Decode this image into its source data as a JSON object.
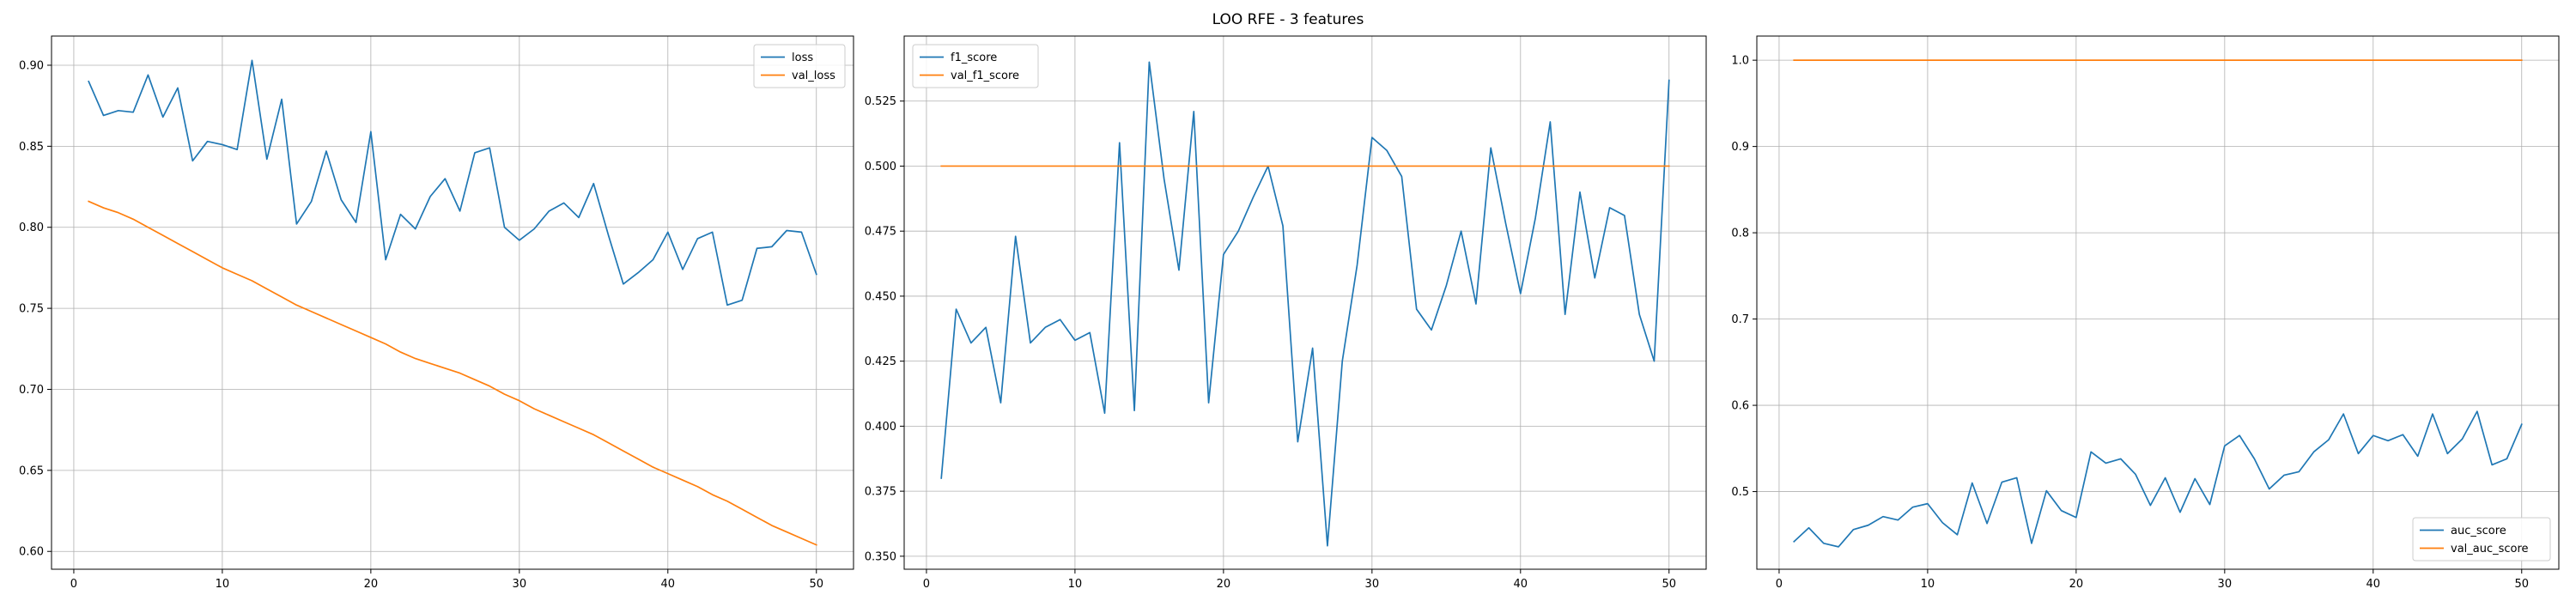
{
  "figure": {
    "title": "LOO RFE - 3 features"
  },
  "chart_data": [
    {
      "type": "line",
      "xlim": [
        -1.5,
        52.5
      ],
      "ylim": [
        0.589,
        0.918
      ],
      "xticks": [
        0,
        10,
        20,
        30,
        40,
        50
      ],
      "yticks": [
        0.6,
        0.65,
        0.7,
        0.75,
        0.8,
        0.85,
        0.9
      ],
      "ytick_decimals": 2,
      "grid": true,
      "legend": "upper right",
      "series": [
        {
          "name": "loss",
          "color": "#1f77b4",
          "x": [
            1,
            2,
            3,
            4,
            5,
            6,
            7,
            8,
            9,
            10,
            11,
            12,
            13,
            14,
            15,
            16,
            17,
            18,
            19,
            20,
            21,
            22,
            23,
            24,
            25,
            26,
            27,
            28,
            29,
            30,
            31,
            32,
            33,
            34,
            35,
            36,
            37,
            38,
            39,
            40,
            41,
            42,
            43,
            44,
            45,
            46,
            47,
            48,
            49,
            50
          ],
          "values": [
            0.89,
            0.869,
            0.872,
            0.871,
            0.894,
            0.868,
            0.886,
            0.841,
            0.853,
            0.851,
            0.848,
            0.903,
            0.842,
            0.879,
            0.802,
            0.816,
            0.847,
            0.817,
            0.803,
            0.859,
            0.78,
            0.808,
            0.799,
            0.819,
            0.83,
            0.81,
            0.846,
            0.849,
            0.8,
            0.792,
            0.799,
            0.81,
            0.815,
            0.806,
            0.827,
            0.795,
            0.765,
            0.772,
            0.78,
            0.797,
            0.774,
            0.793,
            0.797,
            0.752,
            0.755,
            0.787,
            0.788,
            0.798,
            0.797,
            0.771
          ]
        },
        {
          "name": "val_loss",
          "color": "#ff7f0e",
          "x": [
            1,
            2,
            3,
            4,
            5,
            6,
            7,
            8,
            9,
            10,
            11,
            12,
            13,
            14,
            15,
            16,
            17,
            18,
            19,
            20,
            21,
            22,
            23,
            24,
            25,
            26,
            27,
            28,
            29,
            30,
            31,
            32,
            33,
            34,
            35,
            36,
            37,
            38,
            39,
            40,
            41,
            42,
            43,
            44,
            45,
            46,
            47,
            48,
            49,
            50
          ],
          "values": [
            0.816,
            0.812,
            0.809,
            0.805,
            0.8,
            0.795,
            0.79,
            0.785,
            0.78,
            0.775,
            0.771,
            0.767,
            0.762,
            0.757,
            0.752,
            0.748,
            0.744,
            0.74,
            0.736,
            0.732,
            0.728,
            0.723,
            0.719,
            0.716,
            0.713,
            0.71,
            0.706,
            0.702,
            0.697,
            0.693,
            0.688,
            0.684,
            0.68,
            0.676,
            0.672,
            0.667,
            0.662,
            0.657,
            0.652,
            0.648,
            0.644,
            0.64,
            0.635,
            0.631,
            0.626,
            0.621,
            0.616,
            0.612,
            0.608,
            0.604
          ]
        }
      ]
    },
    {
      "type": "line",
      "xlim": [
        -1.5,
        52.5
      ],
      "ylim": [
        0.345,
        0.55
      ],
      "xticks": [
        0,
        10,
        20,
        30,
        40,
        50
      ],
      "yticks": [
        0.35,
        0.375,
        0.4,
        0.425,
        0.45,
        0.475,
        0.5,
        0.525
      ],
      "ytick_decimals": 3,
      "grid": true,
      "legend": "upper left",
      "series": [
        {
          "name": "f1_score",
          "color": "#1f77b4",
          "x": [
            1,
            2,
            3,
            4,
            5,
            6,
            7,
            8,
            9,
            10,
            11,
            12,
            13,
            14,
            15,
            16,
            17,
            18,
            19,
            20,
            21,
            22,
            23,
            24,
            25,
            26,
            27,
            28,
            29,
            30,
            31,
            32,
            33,
            34,
            35,
            36,
            37,
            38,
            39,
            40,
            41,
            42,
            43,
            44,
            45,
            46,
            47,
            48,
            49,
            50
          ],
          "values": [
            0.38,
            0.445,
            0.432,
            0.438,
            0.409,
            0.473,
            0.432,
            0.438,
            0.441,
            0.433,
            0.436,
            0.405,
            0.509,
            0.406,
            0.54,
            0.495,
            0.46,
            0.521,
            0.409,
            0.466,
            0.475,
            0.488,
            0.5,
            0.477,
            0.394,
            0.43,
            0.354,
            0.425,
            0.462,
            0.511,
            0.506,
            0.496,
            0.445,
            0.437,
            0.454,
            0.475,
            0.447,
            0.507,
            0.478,
            0.451,
            0.48,
            0.517,
            0.443,
            0.49,
            0.457,
            0.484,
            0.481,
            0.443,
            0.425,
            0.533
          ]
        },
        {
          "name": "val_f1_score",
          "color": "#ff7f0e",
          "x": [
            1,
            50
          ],
          "values": [
            0.5,
            0.5
          ]
        }
      ]
    },
    {
      "type": "line",
      "xlim": [
        -1.5,
        52.5
      ],
      "ylim": [
        0.41,
        1.028
      ],
      "xticks": [
        0,
        10,
        20,
        30,
        40,
        50
      ],
      "yticks": [
        0.5,
        0.6,
        0.7,
        0.8,
        0.9,
        1.0
      ],
      "ytick_decimals": 1,
      "grid": true,
      "legend": "lower right",
      "series": [
        {
          "name": "auc_score",
          "color": "#1f77b4",
          "x": [
            1,
            2,
            3,
            4,
            5,
            6,
            7,
            8,
            9,
            10,
            11,
            12,
            13,
            14,
            15,
            16,
            17,
            18,
            19,
            20,
            21,
            22,
            23,
            24,
            25,
            26,
            27,
            28,
            29,
            30,
            31,
            32,
            33,
            34,
            35,
            36,
            37,
            38,
            39,
            40,
            41,
            42,
            43,
            44,
            45,
            46,
            47,
            48,
            49,
            50
          ],
          "values": [
            0.442,
            0.458,
            0.44,
            0.436,
            0.456,
            0.461,
            0.471,
            0.467,
            0.482,
            0.486,
            0.464,
            0.45,
            0.51,
            0.463,
            0.511,
            0.516,
            0.44,
            0.501,
            0.478,
            0.47,
            0.546,
            0.533,
            0.538,
            0.52,
            0.484,
            0.516,
            0.476,
            0.515,
            0.485,
            0.553,
            0.565,
            0.538,
            0.503,
            0.519,
            0.523,
            0.546,
            0.56,
            0.59,
            0.544,
            0.565,
            0.559,
            0.566,
            0.541,
            0.59,
            0.544,
            0.561,
            0.593,
            0.531,
            0.538,
            0.578
          ]
        },
        {
          "name": "val_auc_score",
          "color": "#ff7f0e",
          "x": [
            1,
            50
          ],
          "values": [
            1.0,
            1.0
          ]
        }
      ]
    }
  ]
}
